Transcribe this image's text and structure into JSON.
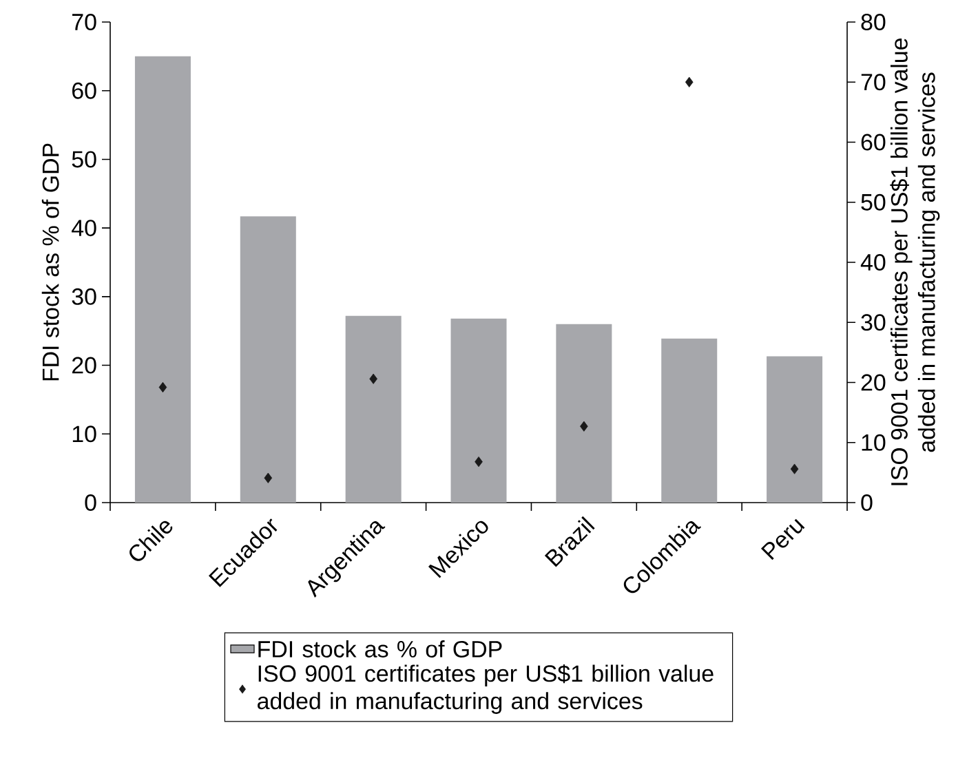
{
  "chart_data": {
    "type": "bar",
    "categories": [
      "Chile",
      "Ecuador",
      "Argentina",
      "Mexico",
      "Brazil",
      "Colombia",
      "Peru"
    ],
    "ylabel": "FDI stock as % of GDP",
    "y2label": "ISO 9001 certificates per US$1 billion value added in manufacturing and services",
    "series": [
      {
        "name": "FDI stock as % of GDP",
        "color": "#a6a7ab",
        "values": [
          65.0,
          41.7,
          27.2,
          26.8,
          26.0,
          23.9,
          21.3
        ]
      },
      {
        "name": "ISO 9001 certificates per US$1 billion value added in manufacturing and services",
        "type": "scatter",
        "axis": "y2",
        "color": "#1a1a1a",
        "values": [
          19.2,
          4.1,
          20.6,
          6.8,
          12.7,
          70.0,
          5.6
        ]
      }
    ],
    "ylim": [
      0,
      70
    ],
    "yticks": [
      0,
      10,
      20,
      30,
      40,
      50,
      60,
      70
    ],
    "y2lim": [
      0,
      80
    ],
    "y2ticks": [
      0,
      10,
      20,
      30,
      40,
      50,
      60,
      70,
      80
    ],
    "marker": "diamond",
    "legend": "bottom",
    "grid": false
  }
}
